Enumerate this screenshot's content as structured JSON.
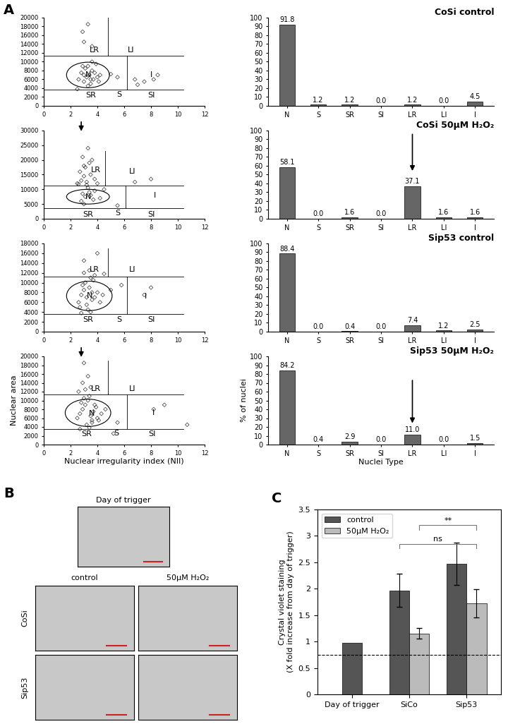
{
  "chart_data": [
    {
      "type": "scatter",
      "panel_label": "A",
      "marker": "diamond",
      "color": "#333333",
      "x": [
        2.6,
        2.8,
        3.0,
        3.1,
        3.2,
        3.3,
        3.4,
        3.5,
        3.6,
        3.7,
        3.8,
        3.9,
        4.0,
        4.2,
        2.9,
        3.3,
        3.6,
        4.1,
        3.0,
        3.5,
        3.3,
        2.9,
        3.0,
        3.6,
        5.0,
        5.5,
        6.8,
        7.5,
        8.2,
        8.5,
        7.0,
        2.5
      ],
      "y": [
        6000,
        7500,
        5500,
        8500,
        6500,
        9000,
        7000,
        5000,
        8000,
        6000,
        7500,
        9500,
        6500,
        7000,
        9000,
        4500,
        10000,
        5500,
        7000,
        6000,
        18500,
        16800,
        14500,
        13500,
        7200,
        6500,
        6000,
        5500,
        6000,
        7000,
        4800,
        3800
      ],
      "xlim": [
        0,
        12
      ],
      "xticks": [
        0,
        2,
        4,
        6,
        8,
        10,
        12
      ],
      "ylim": [
        0,
        20000
      ],
      "yticks": [
        0,
        2000,
        4000,
        6000,
        8000,
        10000,
        12000,
        14000,
        16000,
        18000,
        20000
      ],
      "regions": {
        "upper": 11300,
        "lower": 3600,
        "split_upper": 4.8,
        "split_lower": 6.2,
        "x_end": 10.4,
        "top": 20000
      },
      "ellipse": {
        "x": 3.3,
        "y": 7000,
        "width": 3.2,
        "height": 5800
      },
      "annotations": [
        {
          "text": "LR",
          "x": 3.8,
          "y": 12600
        },
        {
          "text": "LI",
          "x": 6.5,
          "y": 12600
        },
        {
          "text": "N",
          "x": 3.3,
          "y": 7000
        },
        {
          "text": "I",
          "x": 8.0,
          "y": 7000
        },
        {
          "text": "SR",
          "x": 3.5,
          "y": 2400
        },
        {
          "text": "S",
          "x": 5.6,
          "y": 2600
        },
        {
          "text": "SI",
          "x": 8.0,
          "y": 2400
        }
      ]
    },
    {
      "type": "bar",
      "title": "CoSi control",
      "color": "#666666",
      "data_labels": true,
      "categories": [
        "N",
        "S",
        "SR",
        "SI",
        "LR",
        "LI",
        "I"
      ],
      "values": [
        91.8,
        1.2,
        1.2,
        0.0,
        1.2,
        0.0,
        4.5
      ],
      "ylim": [
        0,
        100
      ],
      "yticks": [
        0,
        10,
        20,
        30,
        40,
        50,
        60,
        70,
        80,
        90,
        100
      ]
    },
    {
      "type": "scatter",
      "marker": "diamond",
      "color": "#333333",
      "x": [
        2.5,
        2.8,
        3.0,
        3.2,
        3.5,
        3.8,
        4.0,
        2.7,
        3.1,
        3.4,
        2.9,
        3.6,
        3.3,
        3.0,
        2.6,
        3.2,
        3.5,
        3.8,
        4.2,
        2.8,
        3.1,
        3.4,
        3.7,
        3.0,
        4.5,
        5.5,
        6.8,
        8.0,
        3.3,
        2.9
      ],
      "y": [
        12000,
        13000,
        14500,
        12500,
        15000,
        13500,
        12000,
        16000,
        17500,
        19000,
        21000,
        20000,
        24000,
        18000,
        11800,
        11500,
        8000,
        9500,
        7000,
        6000,
        7500,
        9000,
        6500,
        5000,
        10000,
        4500,
        12500,
        13500,
        10500,
        8500
      ],
      "xlim": [
        0,
        12
      ],
      "xticks": [
        0,
        2,
        4,
        6,
        8,
        10,
        12
      ],
      "ylim": [
        0,
        30000
      ],
      "yticks": [
        0,
        5000,
        10000,
        15000,
        20000,
        25000,
        30000
      ],
      "regions": {
        "upper": 11300,
        "lower": 3600,
        "split_upper": 4.6,
        "split_lower": 6.1,
        "x_end": 10.4,
        "top": 23000
      },
      "ellipse": {
        "x": 3.3,
        "y": 7500,
        "width": 3.2,
        "height": 5000
      },
      "annotations": [
        {
          "text": "LR",
          "x": 3.9,
          "y": 16500
        },
        {
          "text": "LI",
          "x": 6.6,
          "y": 16000
        },
        {
          "text": "N",
          "x": 3.3,
          "y": 7500
        },
        {
          "text": "I",
          "x": 8.3,
          "y": 8000
        },
        {
          "text": "SR",
          "x": 3.3,
          "y": 1500
        },
        {
          "text": "S",
          "x": 5.5,
          "y": 1800
        },
        {
          "text": "SI",
          "x": 8.0,
          "y": 1500
        }
      ]
    },
    {
      "type": "bar",
      "title": "CoSi 50μM H₂O₂",
      "color": "#666666",
      "data_labels": true,
      "categories": [
        "N",
        "S",
        "SR",
        "SI",
        "LR",
        "LI",
        "I"
      ],
      "values": [
        58.1,
        0.0,
        1.6,
        0.0,
        37.1,
        1.6,
        1.6
      ],
      "ylim": [
        0,
        100
      ],
      "yticks": [
        0,
        10,
        20,
        30,
        40,
        50,
        60,
        70,
        80,
        90,
        100
      ]
    },
    {
      "type": "scatter",
      "marker": "diamond",
      "color": "#333333",
      "x": [
        2.6,
        2.8,
        3.0,
        3.2,
        3.4,
        3.6,
        3.8,
        4.0,
        4.2,
        3.1,
        3.3,
        3.5,
        2.9,
        3.7,
        4.4,
        3.0,
        3.4,
        3.8,
        2.7,
        3.2,
        3.6,
        5.0,
        5.8,
        7.5,
        8.0,
        3.0,
        4.0,
        3.5,
        4.5,
        2.8
      ],
      "y": [
        6000,
        7500,
        8500,
        5500,
        9000,
        6500,
        7000,
        8000,
        6000,
        10000,
        4500,
        11000,
        9500,
        10500,
        7500,
        12000,
        12500,
        11500,
        5000,
        7000,
        8000,
        8500,
        9500,
        7500,
        9000,
        14500,
        16000,
        4000,
        11800,
        3800
      ],
      "xlim": [
        0,
        12
      ],
      "xticks": [
        0,
        2,
        4,
        6,
        8,
        10,
        12
      ],
      "ylim": [
        0,
        18000
      ],
      "yticks": [
        0,
        2000,
        4000,
        6000,
        8000,
        10000,
        12000,
        14000,
        16000,
        18000
      ],
      "regions": {
        "upper": 11300,
        "lower": 3600,
        "split_upper": 4.8,
        "split_lower": 6.2,
        "x_end": 10.4,
        "top": 17000
      },
      "ellipse": {
        "x": 3.4,
        "y": 7300,
        "width": 3.4,
        "height": 6000
      },
      "annotations": [
        {
          "text": "LR",
          "x": 3.8,
          "y": 12600
        },
        {
          "text": "LI",
          "x": 6.6,
          "y": 12600
        },
        {
          "text": "N",
          "x": 3.4,
          "y": 7300
        },
        {
          "text": "I",
          "x": 7.6,
          "y": 7200
        },
        {
          "text": "SR",
          "x": 3.3,
          "y": 2500
        },
        {
          "text": "S",
          "x": 5.6,
          "y": 2500
        },
        {
          "text": "SI",
          "x": 8.0,
          "y": 2500
        }
      ]
    },
    {
      "type": "bar",
      "title": "Sip53 control",
      "color": "#666666",
      "data_labels": true,
      "categories": [
        "N",
        "S",
        "SR",
        "SI",
        "LR",
        "LI",
        "I"
      ],
      "values": [
        88.4,
        0.0,
        0.4,
        0.0,
        7.4,
        1.2,
        2.5
      ],
      "ylim": [
        0,
        100
      ],
      "yticks": [
        0,
        10,
        20,
        30,
        40,
        50,
        60,
        70,
        80,
        90,
        100
      ]
    },
    {
      "type": "scatter",
      "marker": "diamond",
      "color": "#333333",
      "x_label": "Nuclear irregularity index (NII)",
      "y_label": "Nuclear area",
      "x": [
        2.5,
        2.7,
        2.9,
        3.1,
        3.3,
        3.5,
        3.7,
        3.9,
        4.1,
        4.3,
        2.8,
        3.0,
        3.2,
        3.4,
        3.6,
        3.8,
        4.0,
        2.6,
        3.1,
        3.5,
        2.9,
        3.3,
        3.0,
        3.6,
        4.6,
        5.2,
        8.2,
        9.0,
        10.7,
        5.5,
        2.7,
        3.4
      ],
      "y": [
        6000,
        7000,
        8000,
        9000,
        10000,
        6500,
        7500,
        8500,
        5500,
        7000,
        9500,
        10500,
        4500,
        11000,
        5000,
        9000,
        6000,
        12000,
        12500,
        13000,
        14000,
        15500,
        18500,
        5500,
        8000,
        2500,
        8000,
        9000,
        4500,
        5000,
        3500,
        3800
      ],
      "xlim": [
        0,
        12
      ],
      "xticks": [
        0,
        2,
        4,
        6,
        8,
        10,
        12
      ],
      "ylim": [
        0,
        20000
      ],
      "yticks": [
        0,
        2000,
        4000,
        6000,
        8000,
        10000,
        12000,
        14000,
        16000,
        18000,
        20000
      ],
      "regions": {
        "upper": 11300,
        "lower": 3600,
        "split_upper": 4.8,
        "split_lower": 6.2,
        "x_end": 10.4,
        "top": 19000
      },
      "ellipse": {
        "x": 3.3,
        "y": 7200,
        "width": 3.4,
        "height": 6200
      },
      "annotations": [
        {
          "text": "LR",
          "x": 3.9,
          "y": 12700
        },
        {
          "text": "LI",
          "x": 6.6,
          "y": 12700
        },
        {
          "text": "N",
          "x": 3.6,
          "y": 7000
        },
        {
          "text": "I",
          "x": 8.2,
          "y": 7200
        },
        {
          "text": "SR",
          "x": 3.2,
          "y": 2400
        },
        {
          "text": "S",
          "x": 5.4,
          "y": 2600
        },
        {
          "text": "SI",
          "x": 8.1,
          "y": 2400
        }
      ]
    },
    {
      "type": "bar",
      "title": "Sip53 50μM H₂O₂",
      "color": "#666666",
      "data_labels": true,
      "x_label": "Nuclei Type",
      "y_label": "% of nuclei",
      "categories": [
        "N",
        "S",
        "SR",
        "SI",
        "LR",
        "LI",
        "I"
      ],
      "values": [
        84.2,
        0.4,
        2.9,
        0.0,
        11.0,
        0.0,
        1.5
      ],
      "ylim": [
        0,
        100
      ],
      "yticks": [
        0,
        10,
        20,
        30,
        40,
        50,
        60,
        70,
        80,
        90,
        100
      ]
    },
    {
      "type": "grouped_bar",
      "panel_label": "C",
      "y_label": "Crystal violet staining\n(X fold increase from day of trigger)",
      "categories": [
        "Day of trigger",
        "SiCo",
        "Sip53"
      ],
      "series": [
        {
          "name": "control",
          "color": "#555555",
          "values": [
            0.97,
            1.97,
            2.47
          ],
          "errors": [
            null,
            0.32,
            0.4
          ]
        },
        {
          "name": "50μM H₂O₂",
          "color": "#bbbbbb",
          "values": [
            null,
            1.15,
            1.72
          ],
          "errors": [
            null,
            0.1,
            0.27
          ]
        }
      ],
      "ylim": [
        0,
        3.5
      ],
      "yticks": [
        0,
        0.5,
        1,
        1.5,
        2,
        2.5,
        3,
        3.5
      ],
      "legend": "upper left",
      "reference_line": 0.75,
      "significance": [
        {
          "label": "ns",
          "from": [
            "SiCo",
            "control"
          ],
          "to": [
            "Sip53",
            "50μM H₂O₂"
          ],
          "y": 2.85
        },
        {
          "label": "**",
          "from": [
            "SiCo",
            "50μM H₂O₂"
          ],
          "to": [
            "Sip53",
            "50μM H₂O₂"
          ],
          "y": 3.2
        }
      ]
    }
  ],
  "panel_b": {
    "panel_label": "B",
    "top_label": "Day of trigger",
    "column_labels": [
      "control",
      "50μM H₂O₂"
    ],
    "row_labels": [
      "CoSi",
      "Sip53"
    ]
  }
}
